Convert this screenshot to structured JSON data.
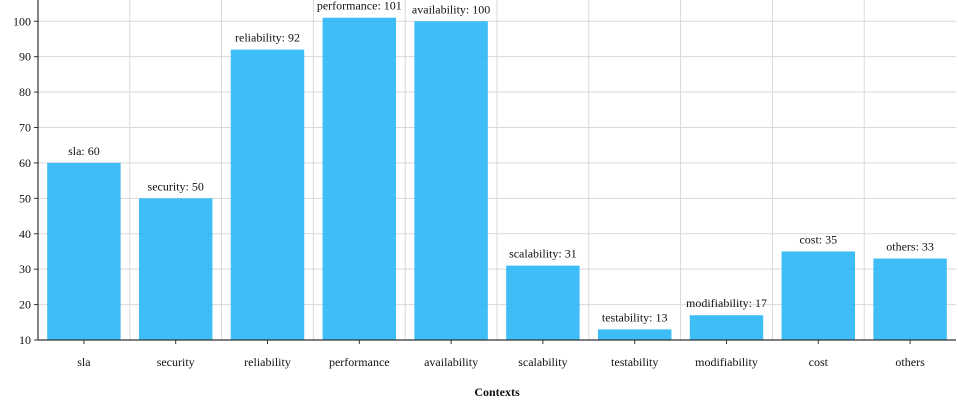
{
  "chart_data": {
    "type": "bar",
    "title": "",
    "xlabel": "Contexts",
    "ylabel": "",
    "categories": [
      "sla",
      "security",
      "reliability",
      "performance",
      "availability",
      "scalability",
      "testability",
      "modifiability",
      "cost",
      "others"
    ],
    "values": [
      60,
      50,
      92,
      101,
      100,
      31,
      13,
      17,
      35,
      33
    ],
    "data_labels": [
      "sla: 60",
      "security: 50",
      "reliability: 92",
      "performance: 101",
      "availability: 100",
      "scalability: 31",
      "testability: 13",
      "modifiability: 17",
      "cost: 35",
      "others: 33"
    ],
    "ylim": [
      10,
      106
    ],
    "yticks": [
      10,
      20,
      30,
      40,
      50,
      60,
      70,
      80,
      90,
      100
    ],
    "grid": true,
    "legend": "none",
    "bar_color": "#29b6f6"
  }
}
